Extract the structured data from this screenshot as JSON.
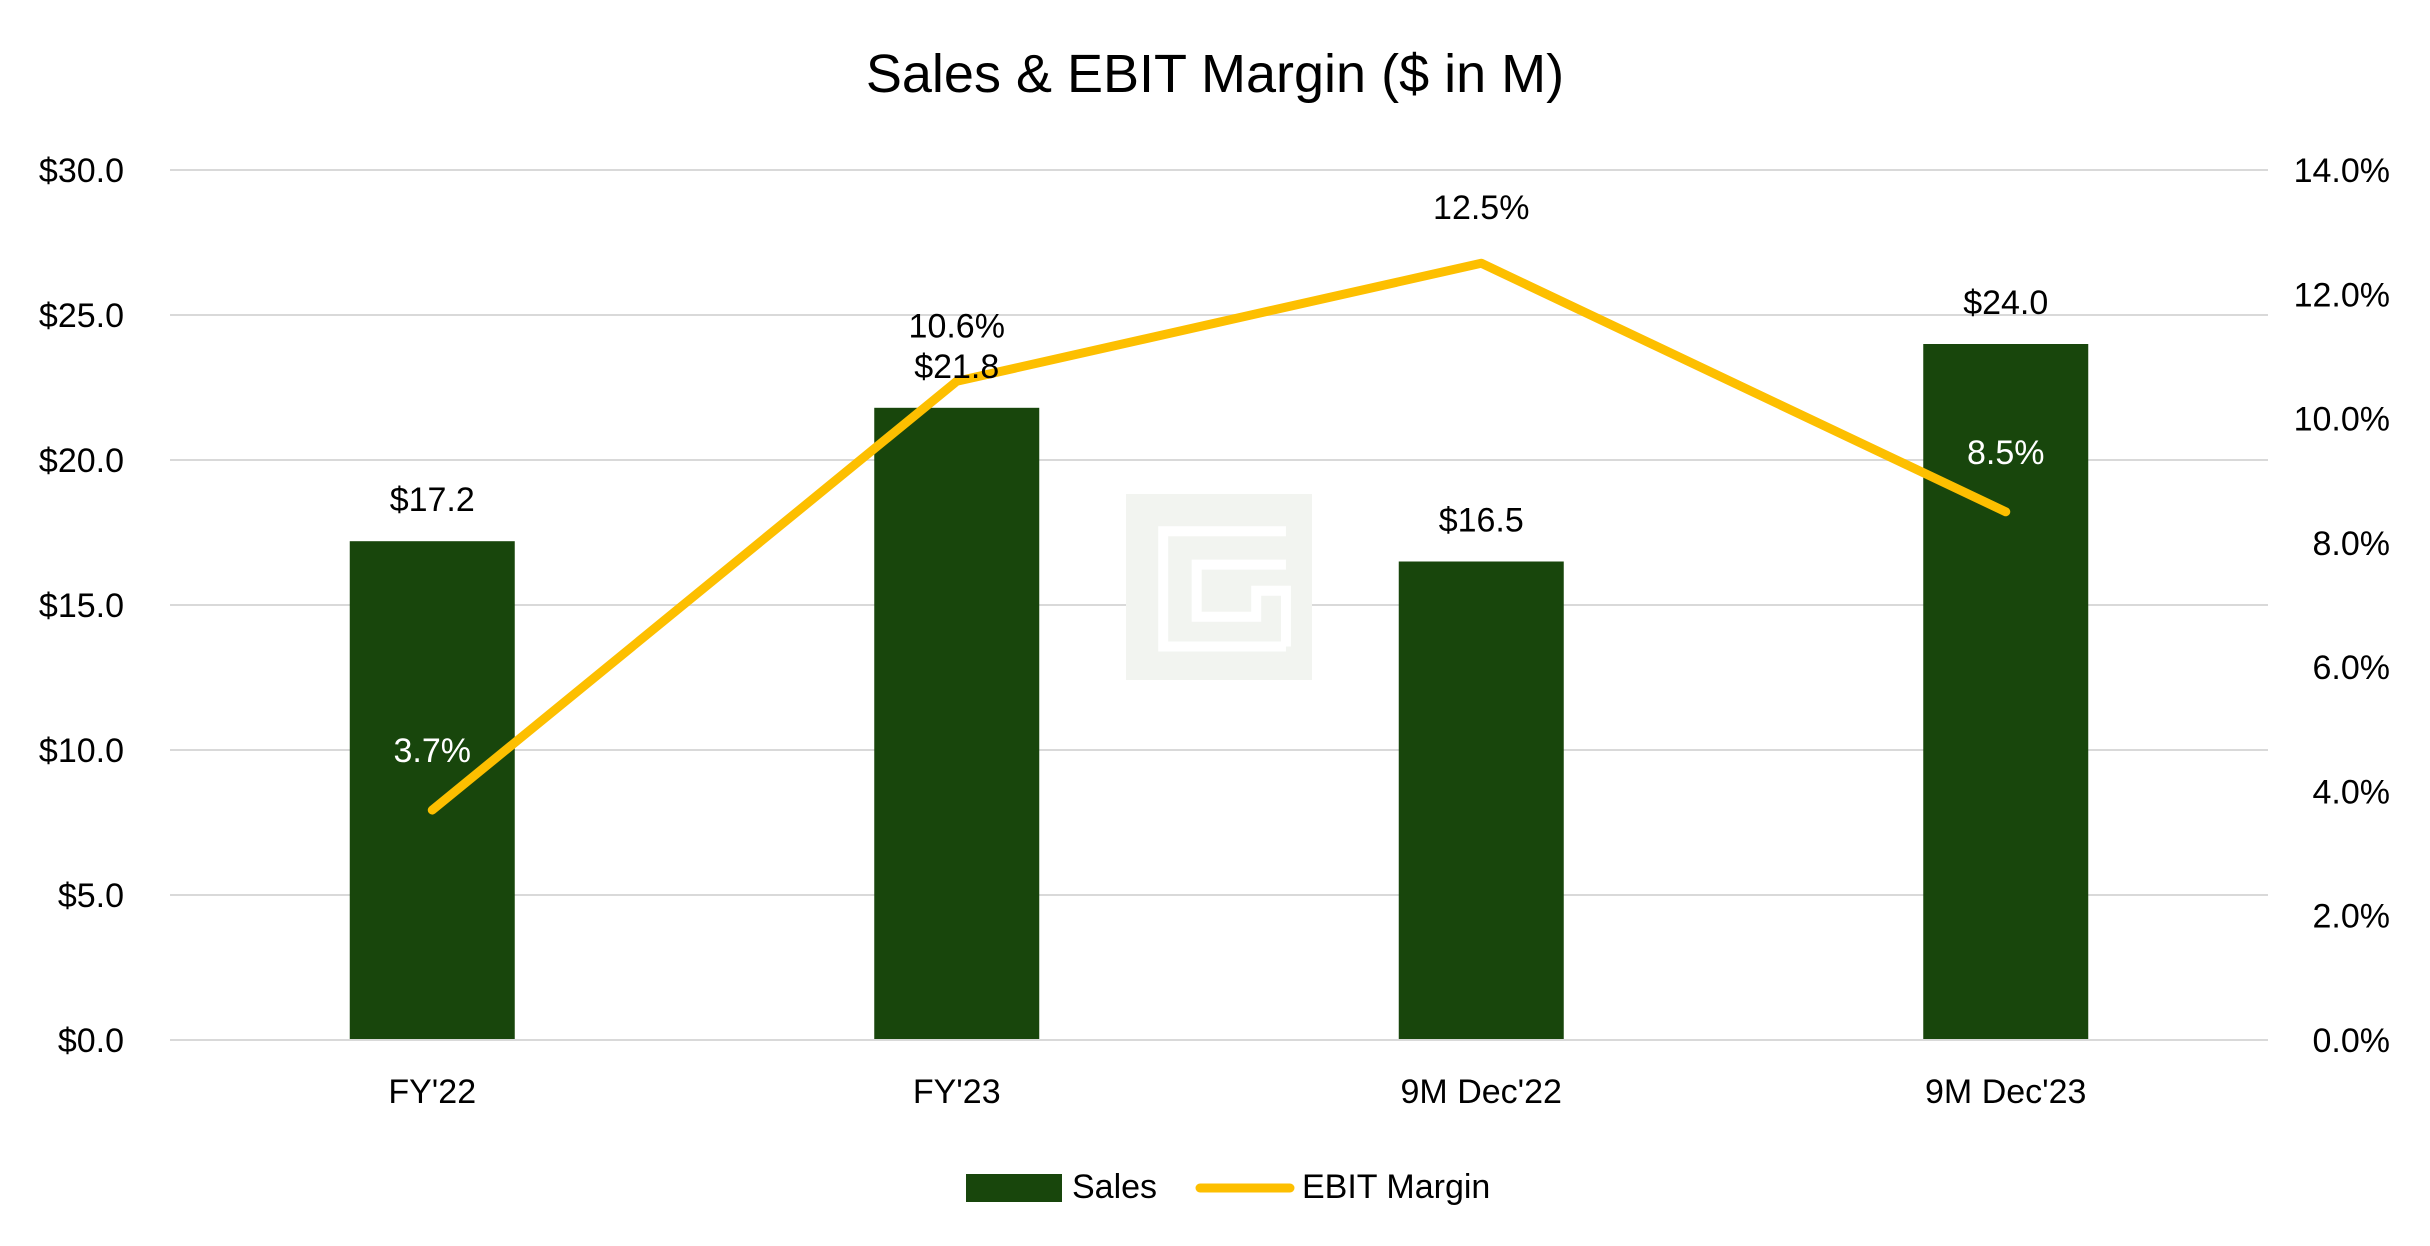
{
  "chart_data": {
    "type": "bar",
    "title": "Sales & EBIT Margin ($ in M)",
    "categories": [
      "FY'22",
      "FY'23",
      "9M Dec'22",
      "9M Dec'23"
    ],
    "series": [
      {
        "name": "Sales",
        "type": "bar",
        "axis": "left",
        "color": "#18460c",
        "values": [
          17.2,
          21.8,
          16.5,
          24.0
        ],
        "labels": [
          "$17.2",
          "$21.8",
          "$16.5",
          "$24.0"
        ]
      },
      {
        "name": "EBIT Margin",
        "type": "line",
        "axis": "right",
        "color": "#fdbf00",
        "values": [
          3.7,
          10.6,
          12.5,
          8.5
        ],
        "labels": [
          "3.7%",
          "10.6%",
          "12.5%",
          "8.5%"
        ]
      }
    ],
    "y_left": {
      "min": 0,
      "max": 30,
      "ticks": [
        0,
        5,
        10,
        15,
        20,
        25,
        30
      ],
      "tick_labels": [
        "$0.0",
        "$5.0",
        "$10.0",
        "$15.0",
        "$20.0",
        "$25.0",
        "$30.0"
      ]
    },
    "y_right": {
      "min": 0,
      "max": 14,
      "ticks": [
        0,
        2,
        4,
        6,
        8,
        10,
        12,
        14
      ],
      "tick_labels": [
        "0.0%",
        "2.0%",
        "4.0%",
        "6.0%",
        "8.0%",
        "10.0%",
        "12.0%",
        "14.0%"
      ]
    },
    "grid": true,
    "legend_position": "bottom-center",
    "gridline_color": "#d9d9d9",
    "watermark": "logo-watermark"
  }
}
